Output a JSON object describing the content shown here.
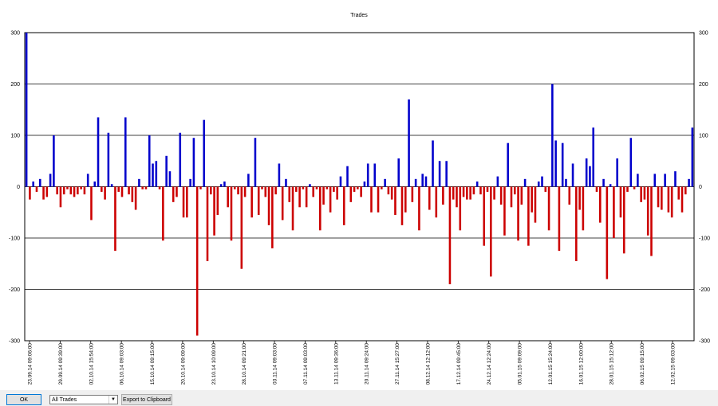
{
  "chart_data": {
    "type": "bar",
    "title": "Trades",
    "ylim": [
      -300,
      300
    ],
    "yticks": [
      -300,
      -200,
      -100,
      0,
      100,
      200,
      300
    ],
    "grid": true,
    "colors": {
      "positive": "#0000cc",
      "negative": "#cc0000"
    },
    "xtick_labels": [
      "23.09.14 09:06:00",
      "29.09.14 09:39:00",
      "02.10.14 15:54:00",
      "06.10.14 09:03:00",
      "15.10.14 09:15:00",
      "20.10.14 09:09:00",
      "23.10.14 10:09:00",
      "28.10.14 09:21:00",
      "03.11.14 09:03:00",
      "07.11.14 09:03:00",
      "13.11.14 09:36:00",
      "20.11.14 09:24:00",
      "27.11.14 15:27:00",
      "08.12.14 12:12:00",
      "17.12.14 09:45:00",
      "24.12.14 12:24:00",
      "05.01.15 09:09:00",
      "12.01.15 15:24:00",
      "16.01.15 12:00:00",
      "28.01.15 15:12:00",
      "06.02.15 09:15:00",
      "12.02.15 09:03:00"
    ],
    "values": [
      300,
      -25,
      10,
      -10,
      15,
      -25,
      -20,
      25,
      100,
      -15,
      -40,
      -15,
      -5,
      -15,
      -20,
      -15,
      -5,
      -15,
      25,
      -65,
      10,
      135,
      -10,
      -25,
      105,
      5,
      -125,
      -10,
      -20,
      135,
      -15,
      -30,
      -45,
      15,
      -5,
      -5,
      100,
      45,
      50,
      -5,
      -105,
      60,
      30,
      -30,
      -20,
      105,
      -60,
      -60,
      15,
      95,
      -290,
      -5,
      130,
      -145,
      -15,
      -95,
      -55,
      5,
      10,
      -40,
      -105,
      -5,
      -15,
      -160,
      -20,
      25,
      -60,
      95,
      -55,
      -5,
      -20,
      -75,
      -120,
      -15,
      45,
      -65,
      15,
      -30,
      -85,
      -10,
      -40,
      -5,
      -40,
      5,
      -20,
      -5,
      -85,
      -35,
      -5,
      -50,
      -10,
      -25,
      20,
      -75,
      40,
      -30,
      -10,
      -5,
      -20,
      10,
      45,
      -50,
      45,
      -50,
      -5,
      15,
      -15,
      -25,
      -55,
      55,
      -75,
      -50,
      170,
      -30,
      15,
      -85,
      25,
      20,
      -45,
      90,
      -60,
      50,
      -35,
      50,
      -190,
      -25,
      -40,
      -85,
      -20,
      -25,
      -25,
      -15,
      10,
      -15,
      -115,
      -10,
      -175,
      -25,
      20,
      -35,
      -95,
      85,
      -40,
      -15,
      -105,
      -35,
      15,
      -115,
      -50,
      -70,
      10,
      20,
      -10,
      -85,
      200,
      90,
      -125,
      85,
      15,
      -35,
      45,
      -145,
      -45,
      -85,
      55,
      40,
      115,
      -10,
      -70,
      15,
      -180,
      5,
      -100,
      55,
      -60,
      -130,
      -10,
      95,
      -5,
      25,
      -30,
      -25,
      -95,
      -135,
      25,
      -40,
      -45,
      25,
      -50,
      -60,
      30,
      -25,
      -50,
      -15,
      15,
      115
    ]
  },
  "controls": {
    "ok_label": "OK",
    "filter_value": "All Trades",
    "export_label": "Export to Clipboard"
  }
}
